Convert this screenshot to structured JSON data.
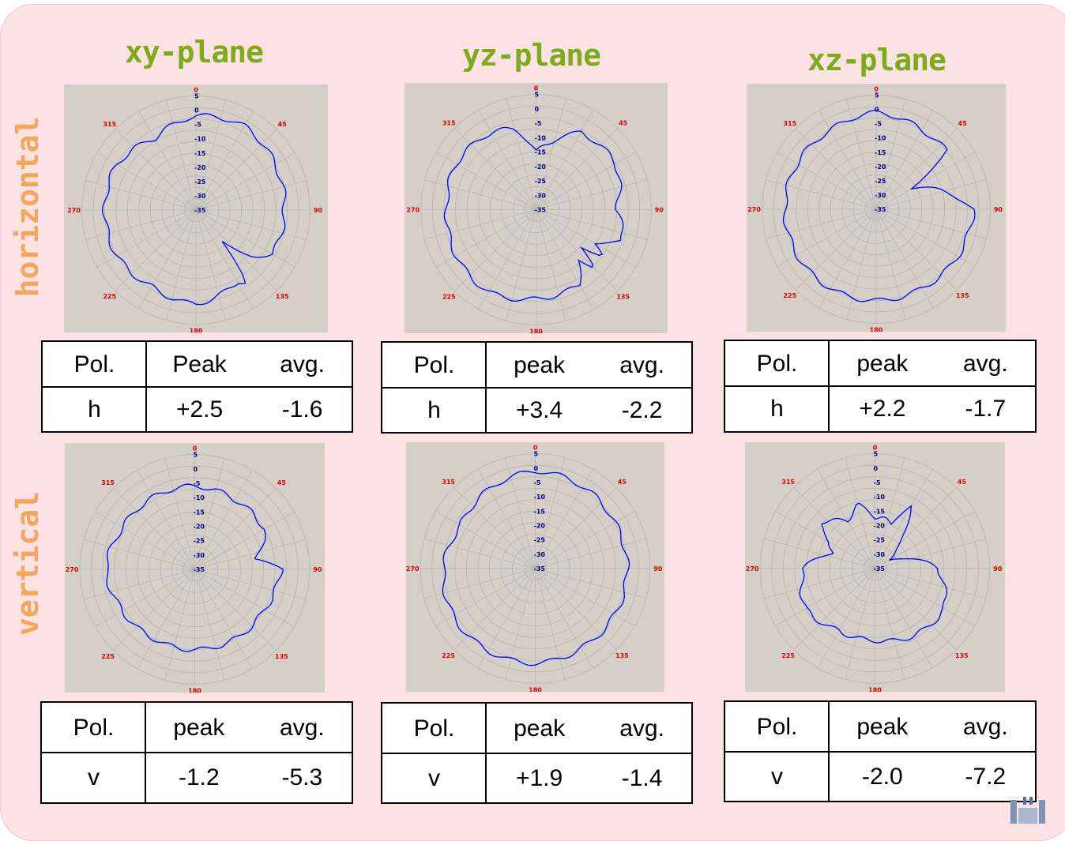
{
  "column_titles": [
    "xy-plane",
    "yz-plane",
    "xz-plane"
  ],
  "row_labels": [
    "horizontal",
    "vertical"
  ],
  "polar_axis": {
    "angle_labels": [
      "0",
      "45",
      "90",
      "135",
      "180",
      "225",
      "270",
      "315"
    ],
    "radial_labels": [
      "5",
      "0",
      "-5",
      "-10",
      "-15",
      "-20",
      "-25",
      "-30",
      "-35"
    ],
    "colors": {
      "grid": "#b4b4b4",
      "angle_label": "#e00000",
      "radial_label": "#000080",
      "trace": "#0000ff",
      "background": "#d4d0c8"
    }
  },
  "tables": [
    {
      "headers": [
        "Pol.",
        "Peak",
        "avg."
      ],
      "values": [
        "h",
        "+2.5",
        "-1.6"
      ]
    },
    {
      "headers": [
        "Pol.",
        "peak",
        "avg."
      ],
      "values": [
        "h",
        "+3.4",
        "-2.2"
      ]
    },
    {
      "headers": [
        "Pol.",
        "peak",
        "avg."
      ],
      "values": [
        "h",
        "+2.2",
        "-1.7"
      ]
    },
    {
      "headers": [
        "Pol.",
        "peak",
        "avg."
      ],
      "values": [
        "v",
        "-1.2",
        "-5.3"
      ]
    },
    {
      "headers": [
        "Pol.",
        "peak",
        "avg."
      ],
      "values": [
        "v",
        "+1.9",
        "-1.4"
      ]
    },
    {
      "headers": [
        "Pol.",
        "peak",
        "avg."
      ],
      "values": [
        "v",
        "-2.0",
        "-7.2"
      ]
    }
  ],
  "chart_data": [
    {
      "type": "polar",
      "plane": "xy-plane",
      "polarization": "horizontal",
      "rlim": [
        -35,
        5
      ],
      "theta": [
        0,
        30,
        60,
        90,
        120,
        130,
        140,
        145,
        150,
        180,
        210,
        240,
        270,
        300,
        330
      ],
      "r": [
        -2,
        -1,
        -3,
        -4,
        -4,
        -10,
        -20,
        -4,
        -6,
        -2,
        -4,
        -3,
        -3,
        -3,
        -6
      ]
    },
    {
      "type": "polar",
      "plane": "yz-plane",
      "polarization": "horizontal",
      "rlim": [
        -35,
        5
      ],
      "theta": [
        0,
        15,
        30,
        60,
        90,
        110,
        120,
        125,
        130,
        135,
        140,
        150,
        180,
        210,
        240,
        270,
        300,
        330,
        345
      ],
      "r": [
        -15,
        -10,
        -4,
        -3,
        -7,
        -3,
        -12,
        -7,
        -14,
        -5,
        -12,
        -5,
        -4,
        -2,
        -3,
        -4,
        -3,
        -4,
        -6
      ]
    },
    {
      "type": "polar",
      "plane": "xz-plane",
      "polarization": "horizontal",
      "rlim": [
        -35,
        5
      ],
      "theta": [
        0,
        30,
        50,
        60,
        90,
        120,
        150,
        180,
        210,
        240,
        270,
        300,
        330
      ],
      "r": [
        -1,
        -3,
        -3,
        -20,
        -1,
        -2,
        -3,
        -3,
        -3,
        -3,
        -3,
        -3,
        -3
      ]
    },
    {
      "type": "polar",
      "plane": "xy-plane",
      "polarization": "vertical",
      "rlim": [
        -35,
        5
      ],
      "theta": [
        0,
        30,
        60,
        80,
        90,
        120,
        150,
        180,
        210,
        240,
        270,
        300,
        330
      ],
      "r": [
        -6,
        -7,
        -7,
        -13,
        -5,
        -7,
        -7,
        -7,
        -7,
        -6,
        -4,
        -6,
        -6
      ]
    },
    {
      "type": "polar",
      "plane": "yz-plane",
      "polarization": "vertical",
      "rlim": [
        -35,
        5
      ],
      "theta": [
        0,
        30,
        60,
        90,
        120,
        150,
        180,
        210,
        240,
        270,
        300,
        330
      ],
      "r": [
        -1,
        -2,
        -3,
        -3,
        -3,
        -3,
        -2,
        -2,
        -2,
        -3,
        -5,
        -3
      ]
    },
    {
      "type": "polar",
      "plane": "xz-plane",
      "polarization": "vertical",
      "rlim": [
        -35,
        5
      ],
      "theta": [
        0,
        20,
        30,
        40,
        60,
        90,
        120,
        150,
        180,
        210,
        240,
        270,
        290,
        300,
        310,
        330,
        345
      ],
      "r": [
        -17,
        -18,
        -10,
        -20,
        -30,
        -13,
        -7,
        -8,
        -10,
        -10,
        -7,
        -10,
        -19,
        -17,
        -10,
        -16,
        -12
      ]
    }
  ]
}
